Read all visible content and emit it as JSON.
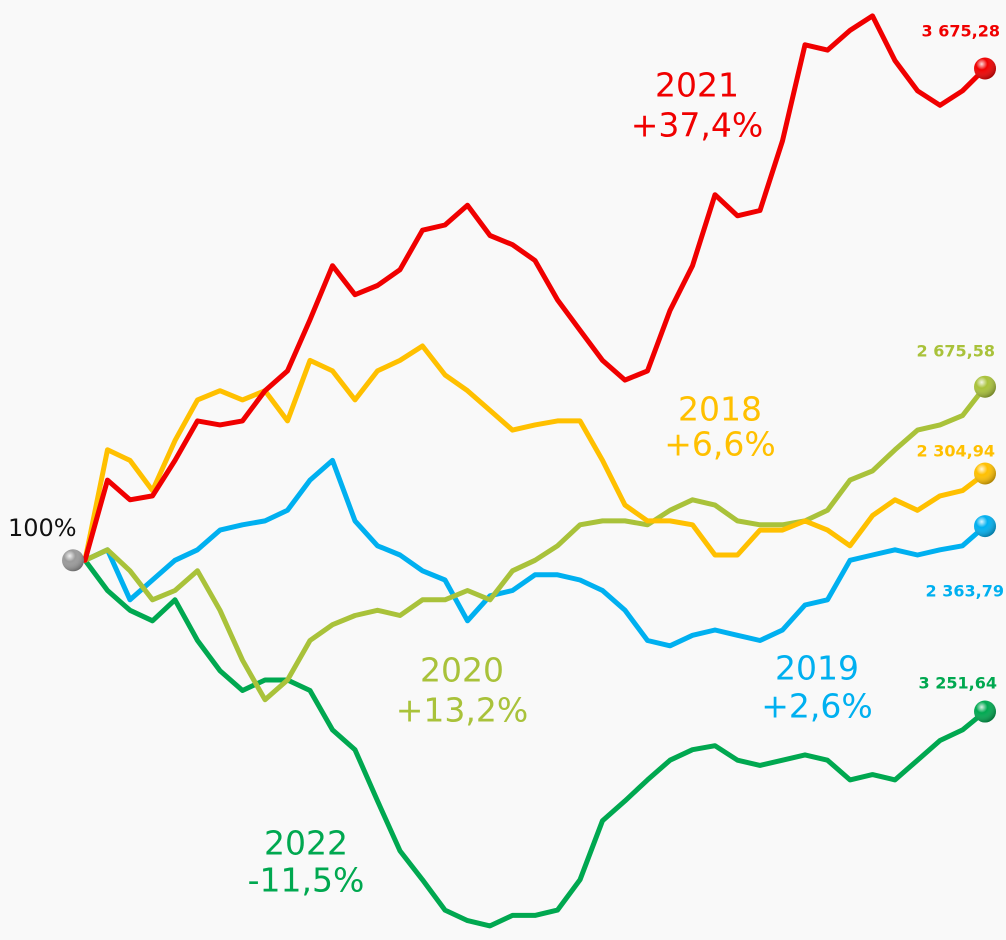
{
  "chart_data": {
    "type": "line",
    "start_label": "100%",
    "ylim": [
      72,
      142
    ],
    "series": [
      {
        "name": "2018",
        "change": "+6,6%",
        "end_label": "2 304,94",
        "color": "#ffc000",
        "values": [
          100,
          108.4,
          107.6,
          105.3,
          109.1,
          112.2,
          112.9,
          112.2,
          112.9,
          110.6,
          115.2,
          114.4,
          112.2,
          114.4,
          115.2,
          116.3,
          114.1,
          112.9,
          111.4,
          109.9,
          110.3,
          110.6,
          110.6,
          107.6,
          104.2,
          103.0,
          103.0,
          102.7,
          100.4,
          100.4,
          102.3,
          102.3,
          103.0,
          102.3,
          101.1,
          103.4,
          104.6,
          103.8,
          104.9,
          105.3,
          106.6
        ]
      },
      {
        "name": "2019",
        "change": "+2,6%",
        "end_label": "2 363,79",
        "color": "#00b0f0",
        "values": [
          100,
          100.8,
          97.0,
          98.5,
          100,
          100.8,
          102.3,
          102.7,
          103.0,
          103.8,
          106.1,
          107.6,
          103.0,
          101.1,
          100.4,
          99.2,
          98.5,
          95.4,
          97.3,
          97.7,
          98.9,
          98.9,
          98.5,
          97.7,
          96.2,
          93.9,
          93.5,
          94.3,
          94.7,
          94.3,
          93.9,
          94.7,
          96.6,
          97.0,
          100,
          100.4,
          100.8,
          100.4,
          100.8,
          101.1,
          102.6
        ]
      },
      {
        "name": "2020",
        "change": "+13,2%",
        "end_label": "2 675,58",
        "color": "#a9c23a",
        "values": [
          100,
          100.8,
          99.2,
          97.0,
          97.7,
          99.2,
          96.2,
          92.4,
          89.4,
          90.9,
          93.9,
          95.1,
          95.8,
          96.2,
          95.8,
          97.0,
          97.0,
          97.7,
          97.0,
          99.2,
          100,
          101.1,
          102.7,
          103.0,
          103.0,
          102.7,
          103.8,
          104.6,
          104.2,
          103.0,
          102.7,
          102.7,
          103.0,
          103.8,
          106.1,
          106.8,
          108.4,
          109.9,
          110.3,
          111.0,
          113.2
        ]
      },
      {
        "name": "2021",
        "change": "+37,4%",
        "end_label": "3 675,28",
        "color": "#f00000",
        "values": [
          100,
          106.1,
          104.6,
          104.9,
          107.6,
          110.6,
          110.3,
          110.6,
          112.9,
          114.4,
          118.3,
          122.4,
          120.2,
          120.9,
          122.1,
          125.1,
          125.5,
          127.0,
          124.7,
          124.0,
          122.8,
          119.8,
          117.5,
          115.2,
          113.7,
          114.4,
          119.0,
          122.4,
          127.8,
          126.2,
          126.6,
          131.9,
          139.2,
          138.8,
          140.3,
          141.4,
          138.0,
          135.7,
          134.6,
          135.7,
          137.4
        ]
      },
      {
        "name": "2022",
        "change": "-11,5%",
        "end_label": "3 251,64",
        "color": "#00a850",
        "values": [
          100,
          97.7,
          96.2,
          95.4,
          97.0,
          93.9,
          91.6,
          90.1,
          90.9,
          90.9,
          90.1,
          87.1,
          85.6,
          81.7,
          77.9,
          75.7,
          73.4,
          72.6,
          72.2,
          73.0,
          73.0,
          73.4,
          75.7,
          80.2,
          81.7,
          83.3,
          84.8,
          85.6,
          85.9,
          84.8,
          84.4,
          84.8,
          85.2,
          84.8,
          83.3,
          83.7,
          83.3,
          84.8,
          86.3,
          87.1,
          88.5
        ]
      }
    ]
  }
}
